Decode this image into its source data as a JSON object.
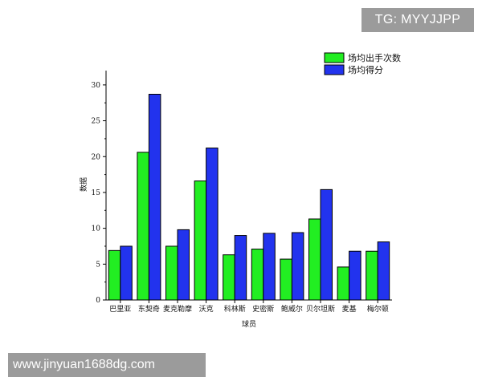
{
  "watermarks": {
    "top": "TG: MYYJJPP",
    "bottom": "www.jinyuan1688dg.com"
  },
  "colors": {
    "series1": "#22ee22",
    "series2": "#2233ee",
    "watermark_bg": "#9b9b9b"
  },
  "chart_data": {
    "type": "bar",
    "title": "",
    "xlabel": "球员",
    "ylabel": "数据",
    "ylim": [
      0,
      32
    ],
    "yticks": [
      0,
      5,
      10,
      15,
      20,
      25,
      30
    ],
    "grid": false,
    "legend_position": "top-right",
    "categories": [
      "巴里亚",
      "东契奇",
      "麦克勒摩",
      "沃克",
      "科林斯",
      "史密斯",
      "鲍威尔",
      "贝尔坦斯",
      "麦基",
      "梅尔顿"
    ],
    "series": [
      {
        "name": "场均出手次数",
        "color": "#22ee22",
        "values": [
          6.9,
          20.6,
          7.5,
          16.6,
          6.3,
          7.1,
          5.7,
          11.3,
          4.6,
          6.8
        ]
      },
      {
        "name": "场均得分",
        "color": "#2233ee",
        "values": [
          7.5,
          28.7,
          9.8,
          21.2,
          9.0,
          9.3,
          9.4,
          15.4,
          6.8,
          8.1
        ]
      }
    ]
  }
}
